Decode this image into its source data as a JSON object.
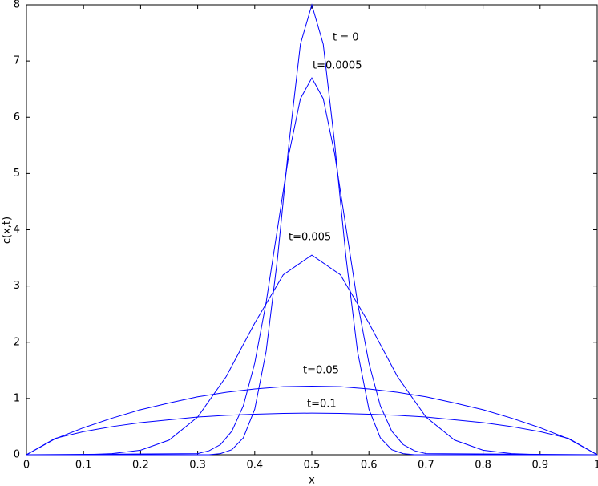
{
  "chart_data": {
    "type": "line",
    "xlabel": "x",
    "ylabel": "c(x,t)",
    "xlim": [
      0,
      1
    ],
    "ylim": [
      0,
      8
    ],
    "xticks": [
      0,
      0.1,
      0.2,
      0.3,
      0.4,
      0.5,
      0.6,
      0.7,
      0.8,
      0.9,
      1
    ],
    "yticks": [
      0,
      1,
      2,
      3,
      4,
      5,
      6,
      7,
      8
    ],
    "grid": false,
    "series": [
      {
        "name": "t = 0",
        "color": "#0000ff",
        "x": [
          0,
          0.3,
          0.32,
          0.34,
          0.36,
          0.38,
          0.4,
          0.42,
          0.44,
          0.46,
          0.48,
          0.5,
          0.52,
          0.54,
          0.56,
          0.58,
          0.6,
          0.62,
          0.64,
          0.66,
          0.68,
          0.7,
          1
        ],
        "values": [
          0,
          0,
          0,
          0.02,
          0.09,
          0.3,
          0.81,
          1.84,
          3.5,
          5.54,
          7.3,
          8,
          7.3,
          5.54,
          3.5,
          1.84,
          0.81,
          0.3,
          0.09,
          0.02,
          0,
          0,
          0
        ]
      },
      {
        "name": "t=0.0005",
        "color": "#0000ff",
        "x": [
          0,
          0.3,
          0.32,
          0.34,
          0.36,
          0.38,
          0.4,
          0.42,
          0.44,
          0.46,
          0.48,
          0.5,
          0.52,
          0.54,
          0.56,
          0.58,
          0.6,
          0.62,
          0.64,
          0.66,
          0.68,
          0.7,
          1
        ],
        "values": [
          0,
          0.02,
          0.07,
          0.18,
          0.42,
          0.87,
          1.63,
          2.71,
          4.03,
          5.35,
          6.33,
          6.7,
          6.33,
          5.35,
          4.03,
          2.71,
          1.63,
          0.87,
          0.42,
          0.18,
          0.07,
          0.02,
          0
        ]
      },
      {
        "name": "t=0.005",
        "color": "#0000ff",
        "x": [
          0,
          0.05,
          0.1,
          0.15,
          0.2,
          0.25,
          0.3,
          0.35,
          0.4,
          0.45,
          0.5,
          0.55,
          0.6,
          0.65,
          0.7,
          0.75,
          0.8,
          0.85,
          0.9,
          0.95,
          1
        ],
        "values": [
          0,
          0,
          0,
          0.02,
          0.08,
          0.26,
          0.67,
          1.39,
          2.34,
          3.2,
          3.55,
          3.2,
          2.34,
          1.39,
          0.67,
          0.26,
          0.08,
          0.02,
          0,
          0,
          0
        ]
      },
      {
        "name": "t=0.05",
        "color": "#0000ff",
        "x": [
          0,
          0.05,
          0.1,
          0.15,
          0.2,
          0.25,
          0.3,
          0.35,
          0.4,
          0.45,
          0.5,
          0.55,
          0.6,
          0.65,
          0.7,
          0.75,
          0.8,
          0.85,
          0.9,
          0.95,
          1
        ],
        "values": [
          0,
          0.28,
          0.48,
          0.65,
          0.8,
          0.92,
          1.03,
          1.11,
          1.17,
          1.21,
          1.22,
          1.21,
          1.17,
          1.11,
          1.03,
          0.92,
          0.8,
          0.65,
          0.48,
          0.28,
          0
        ]
      },
      {
        "name": "t=0.1",
        "color": "#0000ff",
        "x": [
          0,
          0.05,
          0.1,
          0.15,
          0.2,
          0.25,
          0.3,
          0.35,
          0.4,
          0.45,
          0.5,
          0.55,
          0.6,
          0.65,
          0.7,
          0.75,
          0.8,
          0.85,
          0.9,
          0.95,
          1
        ],
        "values": [
          0,
          0.29,
          0.41,
          0.5,
          0.57,
          0.62,
          0.67,
          0.7,
          0.72,
          0.735,
          0.74,
          0.735,
          0.72,
          0.7,
          0.67,
          0.62,
          0.57,
          0.5,
          0.41,
          0.29,
          0
        ]
      }
    ]
  }
}
